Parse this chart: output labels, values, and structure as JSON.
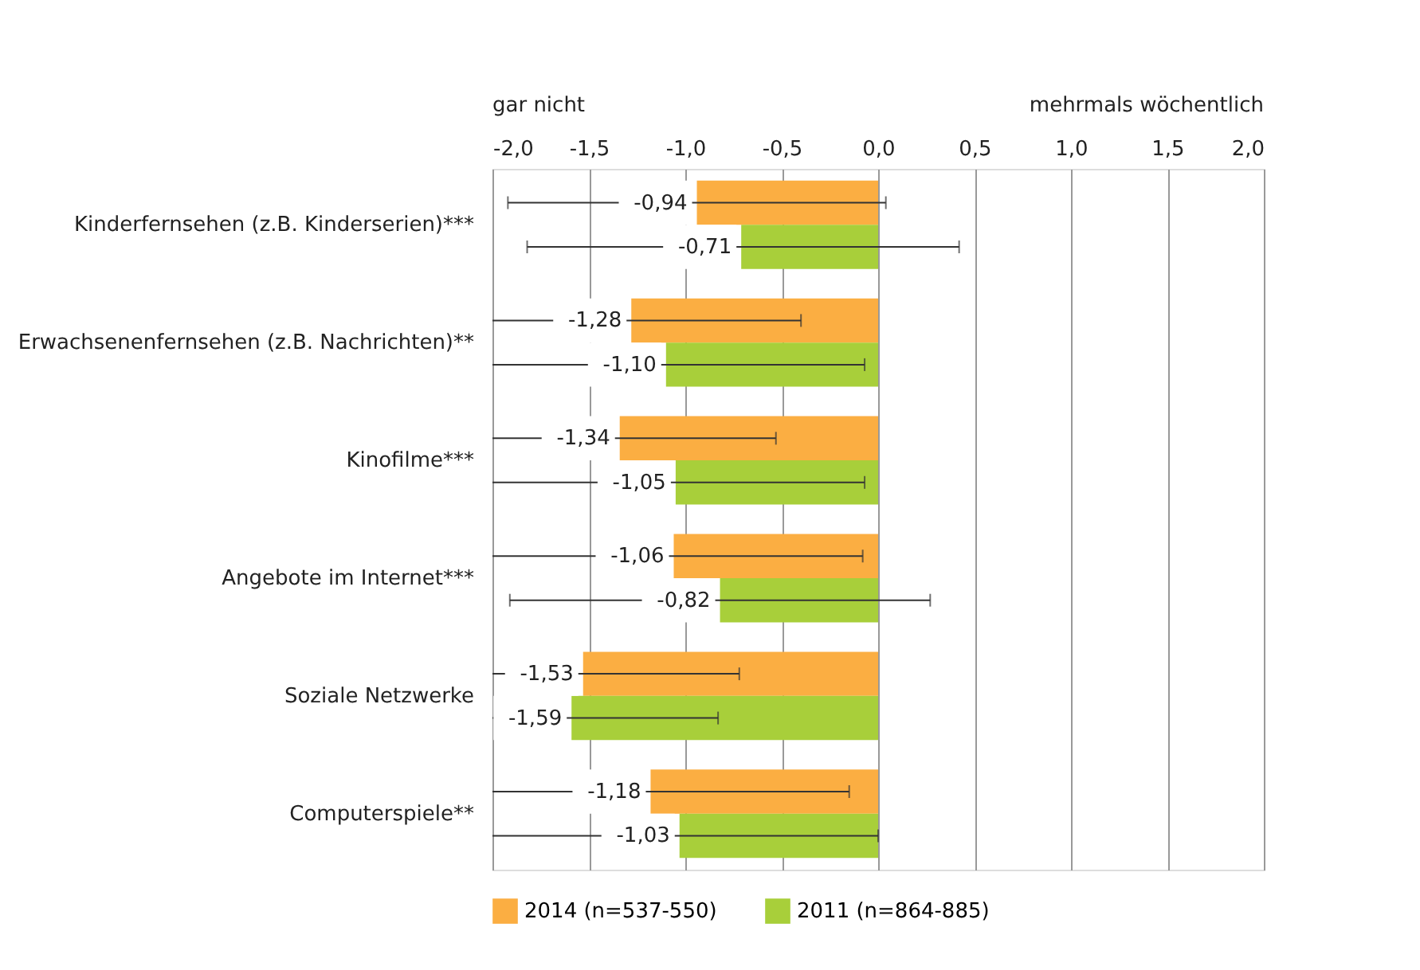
{
  "chart_data": {
    "type": "bar",
    "orientation": "horizontal",
    "categories": [
      "Kinderfernsehen (z.B. Kinderserien)***",
      "Erwachsenenfernsehen (z.B. Nachrichten)**",
      "Kinofilme***",
      "Angebote im Internet***",
      "Soziale Netzwerke",
      "Computerspiele**"
    ],
    "series": [
      {
        "name": "2014 (n=537-550)",
        "color": "#fbae42",
        "values": [
          -0.94,
          -1.28,
          -1.34,
          -1.06,
          -1.53,
          -1.18
        ],
        "value_labels": [
          "-0,94",
          "-1,28",
          "-1,34",
          "-1,06",
          "-1,53",
          "-1,18"
        ],
        "errors": [
          [
            -1.92,
            0.04
          ],
          [
            -2.0,
            -0.4
          ],
          [
            -2.0,
            -0.53
          ],
          [
            -2.0,
            -0.08
          ],
          [
            -2.0,
            -0.72
          ],
          [
            -2.0,
            -0.15
          ]
        ]
      },
      {
        "name": "2011 (n=864-885)",
        "color": "#a8cf3a",
        "values": [
          -0.71,
          -1.1,
          -1.05,
          -0.82,
          -1.59,
          -1.03
        ],
        "value_labels": [
          "-0,71",
          "-1,10",
          "-1,05",
          "-0,82",
          "-1,59",
          "-1,03"
        ],
        "errors": [
          [
            -1.82,
            0.42
          ],
          [
            -2.0,
            -0.07
          ],
          [
            -2.0,
            -0.07
          ],
          [
            -1.91,
            0.27
          ],
          [
            -2.0,
            -0.83
          ],
          [
            -2.0,
            0.0
          ]
        ]
      }
    ],
    "xlim": [
      -2.0,
      2.0
    ],
    "xticks": [
      {
        "value": -2.0,
        "label": "-2,0"
      },
      {
        "value": -1.5,
        "label": "-1,5"
      },
      {
        "value": -1.0,
        "label": "-1,0"
      },
      {
        "value": -0.5,
        "label": "-0,5"
      },
      {
        "value": 0.0,
        "label": "0,0"
      },
      {
        "value": 0.5,
        "label": "0,5"
      },
      {
        "value": 1.0,
        "label": "1,0"
      },
      {
        "value": 1.5,
        "label": "1,5"
      },
      {
        "value": 2.0,
        "label": "2,0"
      }
    ],
    "annotations": [
      "gar nicht",
      "mehrmals wöchentlich"
    ],
    "grid": "x",
    "legend": "bottom"
  }
}
